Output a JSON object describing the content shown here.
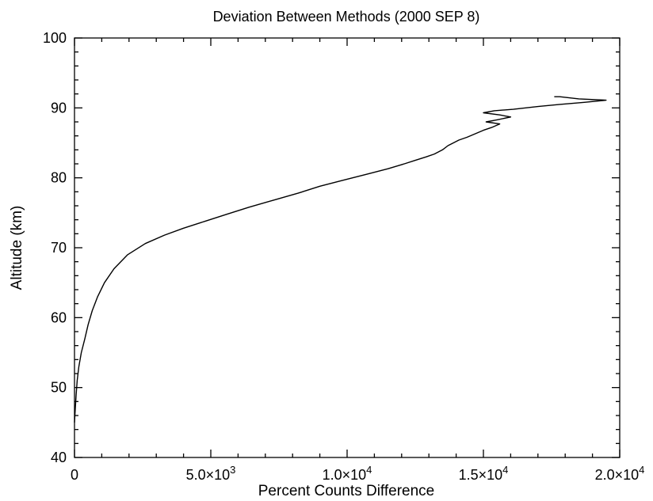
{
  "chart_data": {
    "type": "line",
    "title": "Deviation Between Methods (2000 SEP 8)",
    "xlabel": "Percent Counts Difference",
    "ylabel": "Altitude (km)",
    "xlim": [
      0,
      20000
    ],
    "ylim": [
      40,
      100
    ],
    "x_major_ticks": [
      {
        "value": 0,
        "label": "0"
      },
      {
        "value": 5000,
        "mantissa": "5.0×10",
        "exponent": "3"
      },
      {
        "value": 10000,
        "mantissa": "1.0×10",
        "exponent": "4"
      },
      {
        "value": 15000,
        "mantissa": "1.5×10",
        "exponent": "4"
      },
      {
        "value": 20000,
        "mantissa": "2.0×10",
        "exponent": "4"
      }
    ],
    "x_minor_step": 1000,
    "y_major_ticks": [
      40,
      50,
      60,
      70,
      80,
      90,
      100
    ],
    "y_minor_step": 2,
    "grid": false,
    "legend": "none",
    "series": [
      {
        "color": "#000000",
        "points": [
          [
            0,
            45
          ],
          [
            30,
            47
          ],
          [
            60,
            49
          ],
          [
            100,
            51
          ],
          [
            160,
            53
          ],
          [
            250,
            55
          ],
          [
            380,
            57
          ],
          [
            500,
            59
          ],
          [
            650,
            61
          ],
          [
            850,
            63
          ],
          [
            1100,
            65
          ],
          [
            1450,
            67
          ],
          [
            1950,
            69
          ],
          [
            2600,
            70.6
          ],
          [
            3300,
            71.8
          ],
          [
            4000,
            72.8
          ],
          [
            4800,
            73.8
          ],
          [
            5600,
            74.8
          ],
          [
            6400,
            75.8
          ],
          [
            7300,
            76.8
          ],
          [
            8200,
            77.8
          ],
          [
            9000,
            78.8
          ],
          [
            9800,
            79.6
          ],
          [
            10700,
            80.5
          ],
          [
            11500,
            81.3
          ],
          [
            12100,
            82
          ],
          [
            12500,
            82.5
          ],
          [
            12900,
            83
          ],
          [
            13200,
            83.4
          ],
          [
            13500,
            84
          ],
          [
            13700,
            84.6
          ],
          [
            13900,
            85
          ],
          [
            14100,
            85.4
          ],
          [
            14400,
            85.8
          ],
          [
            14700,
            86.3
          ],
          [
            15000,
            86.8
          ],
          [
            15300,
            87.2
          ],
          [
            15600,
            87.7
          ],
          [
            15100,
            88
          ],
          [
            15500,
            88.3
          ],
          [
            16000,
            88.7
          ],
          [
            15600,
            89
          ],
          [
            15000,
            89.3
          ],
          [
            15400,
            89.6
          ],
          [
            16100,
            89.8
          ],
          [
            17000,
            90.2
          ],
          [
            17800,
            90.5
          ],
          [
            18700,
            90.8
          ],
          [
            19500,
            91.1
          ],
          [
            18500,
            91.3
          ],
          [
            17800,
            91.6
          ],
          [
            17600,
            91.6
          ]
        ]
      }
    ]
  }
}
